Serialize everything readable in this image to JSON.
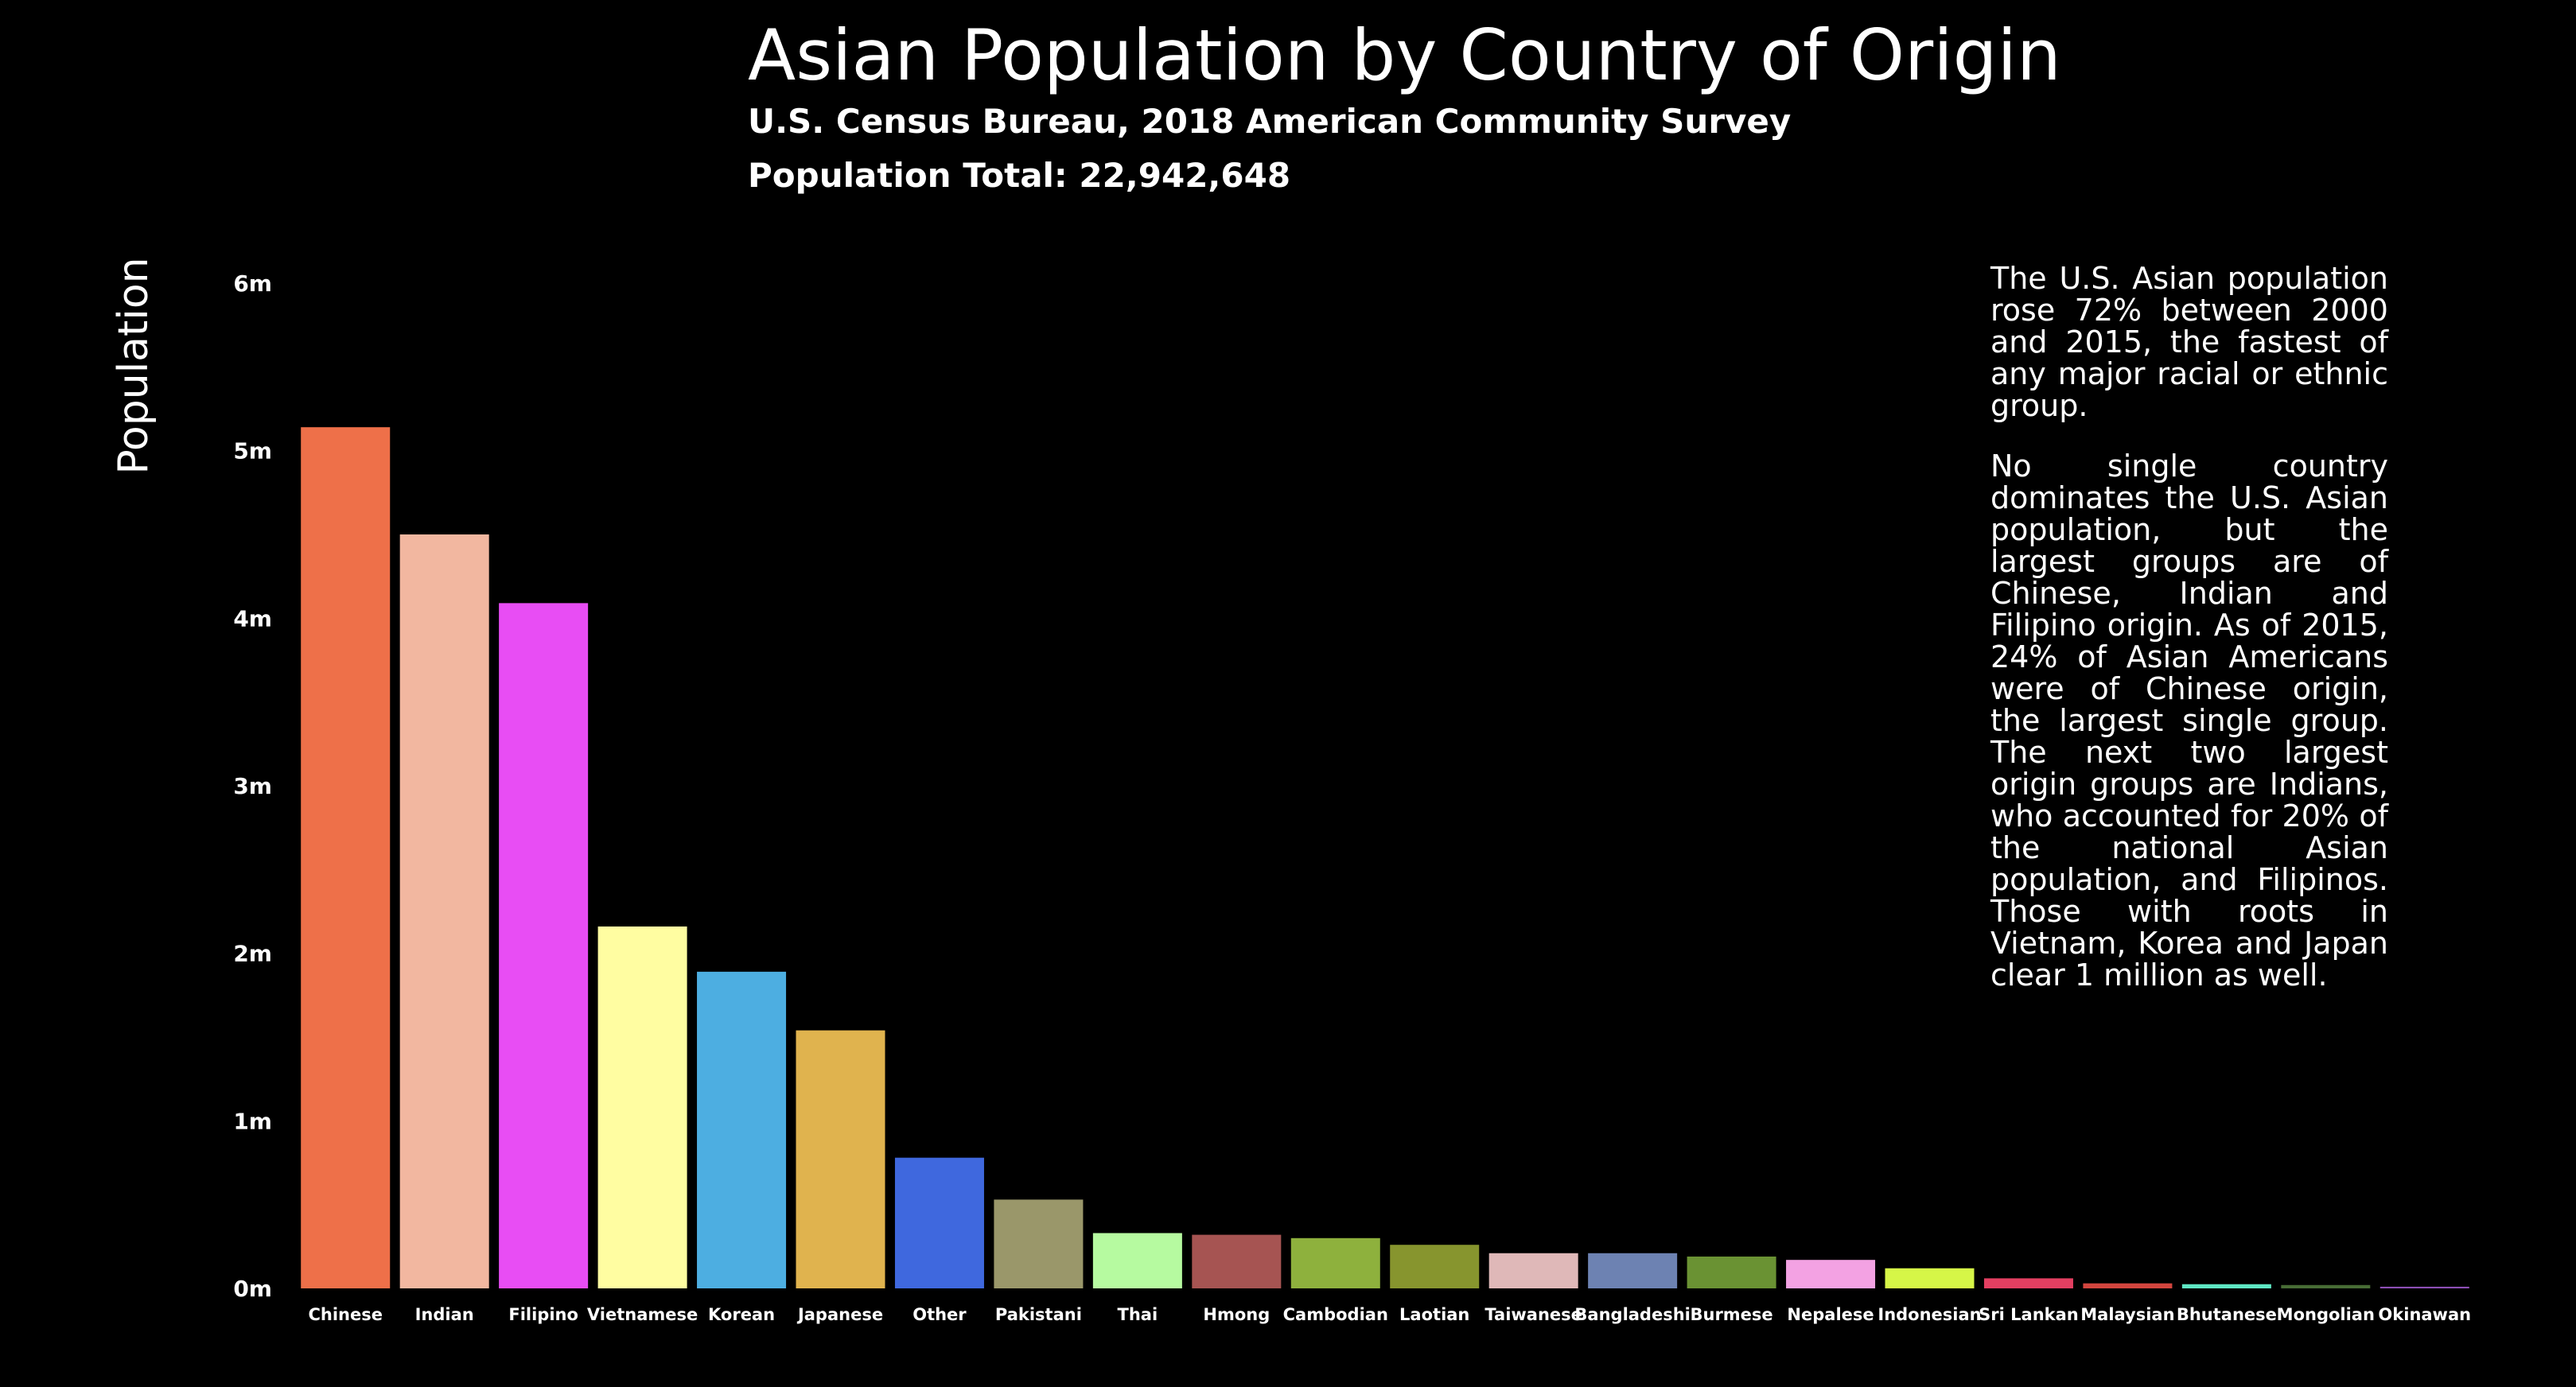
{
  "chart_data": {
    "type": "bar",
    "title": "Asian Population by Country of Origin",
    "subtitle": "U.S. Census Bureau, 2018 American Community Survey",
    "total_label": "Population Total:",
    "total_value": "22,942,648",
    "ylabel": "Population",
    "xlabel": "",
    "ylim": [
      0,
      6000000
    ],
    "yticks": [
      {
        "value": 0,
        "label": "0m"
      },
      {
        "value": 1000000,
        "label": "1m"
      },
      {
        "value": 2000000,
        "label": "2m"
      },
      {
        "value": 3000000,
        "label": "3m"
      },
      {
        "value": 4000000,
        "label": "4m"
      },
      {
        "value": 5000000,
        "label": "5m"
      },
      {
        "value": 6000000,
        "label": "6m"
      }
    ],
    "grid": false,
    "categories": [
      "Chinese",
      "Indian",
      "Filipino",
      "Vietnamese",
      "Korean",
      "Japanese",
      "Other",
      "Pakistani",
      "Thai",
      "Hmong",
      "Cambodian",
      "Laotian",
      "Taiwanese",
      "Bangladeshi",
      "Burmese",
      "Nepalese",
      "Indonesian",
      "Sri Lankan",
      "Malaysian",
      "Bhutanese",
      "Mongolian",
      "Okinawan"
    ],
    "values": [
      5140000,
      4500000,
      4090000,
      2160000,
      1890000,
      1540000,
      780000,
      530000,
      330000,
      320000,
      300000,
      260000,
      210000,
      210000,
      190000,
      170000,
      120000,
      60000,
      30000,
      25000,
      20000,
      10000
    ],
    "colors": [
      "#ee7049",
      "#f2b7a0",
      "#e84df4",
      "#fffda1",
      "#4daee1",
      "#e0b34e",
      "#3f68de",
      "#9a976a",
      "#b6faa0",
      "#a65452",
      "#8eb13d",
      "#87952e",
      "#dfb8b8",
      "#6d82b2",
      "#6a9233",
      "#f3a2e3",
      "#d6f647",
      "#e33f61",
      "#d2453e",
      "#5fe7c4",
      "#476c35",
      "#8d4fb5"
    ]
  },
  "description": [
    "The U.S. Asian population rose 72% between 2000 and 2015, the fastest of any major racial or ethnic group.",
    "No single country dominates the U.S. Asian population, but the largest groups are of Chinese, Indian and Filipino origin. As of 2015, 24% of Asian Americans were of Chinese origin, the largest single group. The next two largest origin groups are Indians, who accounted for 20% of the national Asian population, and Filipinos. Those with roots in Vietnam, Korea and Japan clear 1 million as well."
  ]
}
